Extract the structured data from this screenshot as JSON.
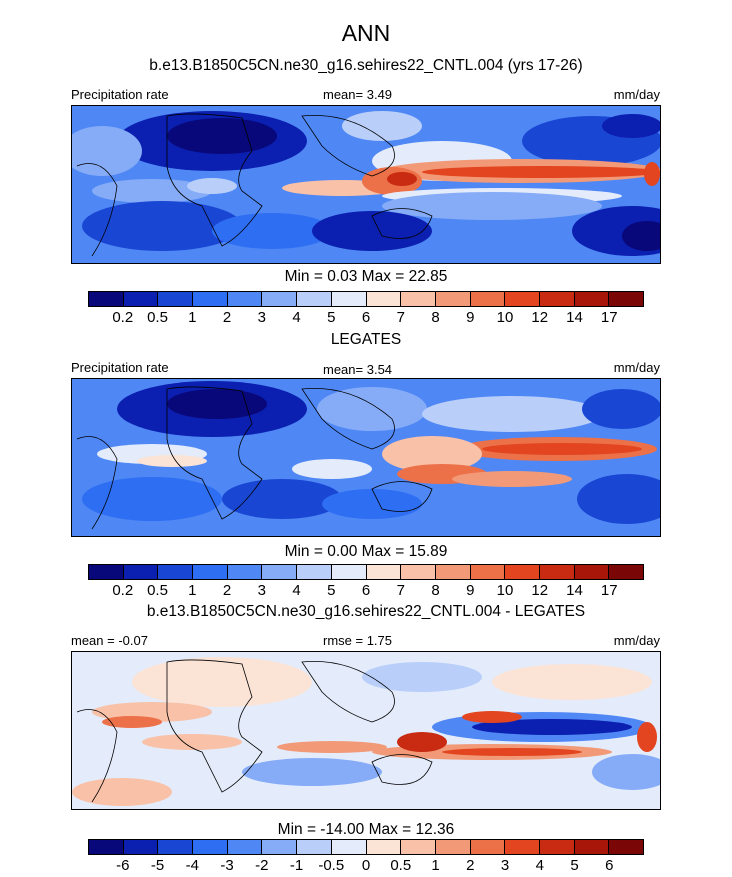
{
  "title": "ANN",
  "colors": {
    "precip": [
      "#08087a",
      "#0b1fb0",
      "#1a46d4",
      "#2e6ef2",
      "#4f88f5",
      "#86acf7",
      "#b9cffa",
      "#e4ecfb",
      "#fbe3d6",
      "#f8c1a8",
      "#f29a78",
      "#ec7048",
      "#e2451f",
      "#c82a12",
      "#a8160a",
      "#7a0606"
    ],
    "diff": [
      "#08087a",
      "#0b1fb0",
      "#1a46d4",
      "#2e6ef2",
      "#4f88f5",
      "#86acf7",
      "#b9cffa",
      "#e4ecfb",
      "#fbe3d6",
      "#f8c1a8",
      "#f29a78",
      "#ec7048",
      "#e2451f",
      "#c82a12",
      "#a8160a",
      "#7a0606"
    ]
  },
  "panels": [
    {
      "subtitle": "b.e13.B1850C5CN.ne30_g16.sehires22_CNTL.004 (yrs 17-26)",
      "left_label": "Precipitation rate",
      "center_label": "mean=   3.49",
      "right_label": "mm/day",
      "stats": "Min =   0.03 Max =  22.85",
      "ticks": [
        "0.2",
        "0.5",
        "1",
        "2",
        "3",
        "4",
        "5",
        "6",
        "7",
        "8",
        "9",
        "10",
        "12",
        "14",
        "17"
      ]
    },
    {
      "subtitle": "LEGATES",
      "left_label": "Precipitation rate",
      "center_label": "mean=   3.54",
      "right_label": "mm/day",
      "stats": "Min =   0.00 Max =  15.89",
      "ticks": [
        "0.2",
        "0.5",
        "1",
        "2",
        "3",
        "4",
        "5",
        "6",
        "7",
        "8",
        "9",
        "10",
        "12",
        "14",
        "17"
      ]
    },
    {
      "subtitle": "b.e13.B1850C5CN.ne30_g16.sehires22_CNTL.004 - LEGATES",
      "left_label": "mean =  -0.07",
      "center_label": "rmse =   1.75",
      "right_label": "mm/day",
      "stats": "Min = -14.00 Max =  12.36",
      "ticks": [
        "-6",
        "-5",
        "-4",
        "-3",
        "-2",
        "-1",
        "-0.5",
        "0",
        "0.5",
        "1",
        "2",
        "3",
        "4",
        "5",
        "6"
      ]
    }
  ]
}
